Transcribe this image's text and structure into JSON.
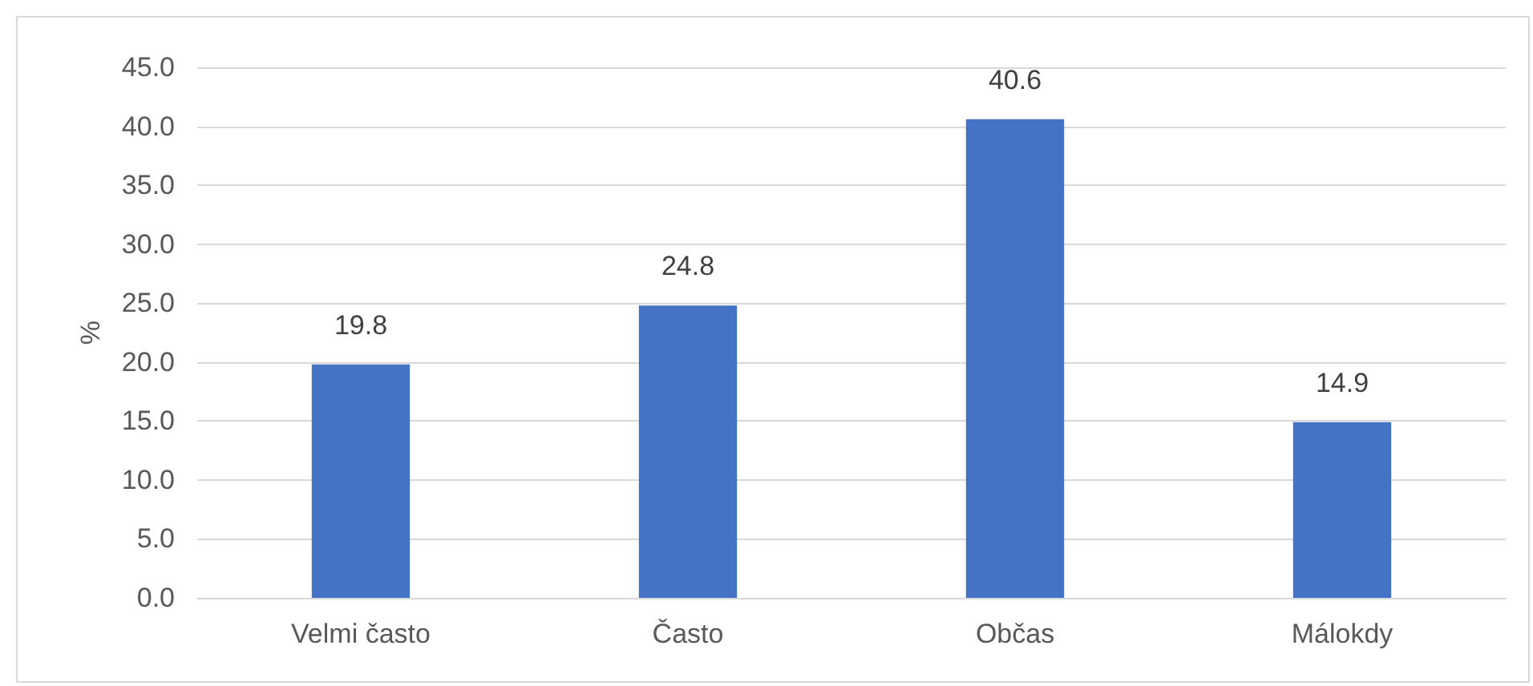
{
  "chart_data": {
    "type": "bar",
    "ylabel": "%",
    "categories": [
      "Velmi často",
      "Často",
      "Občas",
      "Málokdy"
    ],
    "values": [
      19.8,
      24.8,
      40.6,
      14.9
    ],
    "color": "#4472c4",
    "ylim": [
      0,
      45
    ],
    "yticks": [
      {
        "value": 0,
        "label": "0.0"
      },
      {
        "value": 5,
        "label": "5.0"
      },
      {
        "value": 10,
        "label": "10.0"
      },
      {
        "value": 15,
        "label": "15.0"
      },
      {
        "value": 20,
        "label": "20.0"
      },
      {
        "value": 25,
        "label": "25.0"
      },
      {
        "value": 30,
        "label": "30.0"
      },
      {
        "value": 35,
        "label": "35.0"
      },
      {
        "value": 40,
        "label": "40.0"
      },
      {
        "value": 45,
        "label": "45.0"
      }
    ],
    "grid": "y",
    "data_labels": true
  }
}
